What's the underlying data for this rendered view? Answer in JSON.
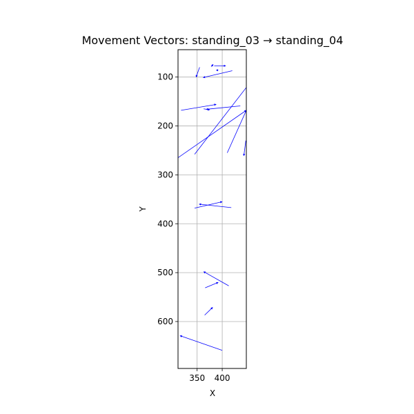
{
  "chart_data": {
    "type": "vector_field",
    "title": "Movement Vectors: standing_03 → standing_04",
    "xlabel": "X",
    "ylabel": "Y",
    "xlim": [
      312,
      448
    ],
    "ylim": [
      696,
      44
    ],
    "y_inverted": true,
    "xticks": [
      350,
      400
    ],
    "yticks": [
      100,
      200,
      300,
      400,
      500,
      600
    ],
    "grid": true,
    "vector_color": "#0000ff",
    "vectors": [
      {
        "x": 355,
        "y": 80,
        "dx": -7,
        "dy": 20
      },
      {
        "x": 378,
        "y": 79,
        "dx": 4,
        "dy": -5
      },
      {
        "x": 384,
        "y": 77,
        "dx": 23,
        "dy": 0
      },
      {
        "x": 392,
        "y": 86,
        "dx": -4,
        "dy": 0
      },
      {
        "x": 420,
        "y": 87,
        "dx": -58,
        "dy": 14
      },
      {
        "x": 318,
        "y": 168,
        "dx": 70,
        "dy": -12
      },
      {
        "x": 363,
        "y": 165,
        "dx": 12,
        "dy": 2
      },
      {
        "x": 436,
        "y": 159,
        "dx": -68,
        "dy": 7
      },
      {
        "x": 345,
        "y": 258,
        "dx": 107,
        "dy": -142
      },
      {
        "x": 312,
        "y": 265,
        "dx": 136,
        "dy": -97
      },
      {
        "x": 410,
        "y": 255,
        "dx": 38,
        "dy": -87
      },
      {
        "x": 447,
        "y": 230,
        "dx": -4,
        "dy": 31
      },
      {
        "x": 418,
        "y": 367,
        "dx": -64,
        "dy": -7
      },
      {
        "x": 345,
        "y": 368,
        "dx": 55,
        "dy": -13
      },
      {
        "x": 413,
        "y": 527,
        "dx": -50,
        "dy": -29
      },
      {
        "x": 366,
        "y": 531,
        "dx": 26,
        "dy": -11
      },
      {
        "x": 400,
        "y": 659,
        "dx": -84,
        "dy": -30
      },
      {
        "x": 365,
        "y": 587,
        "dx": 16,
        "dy": -16
      }
    ]
  }
}
